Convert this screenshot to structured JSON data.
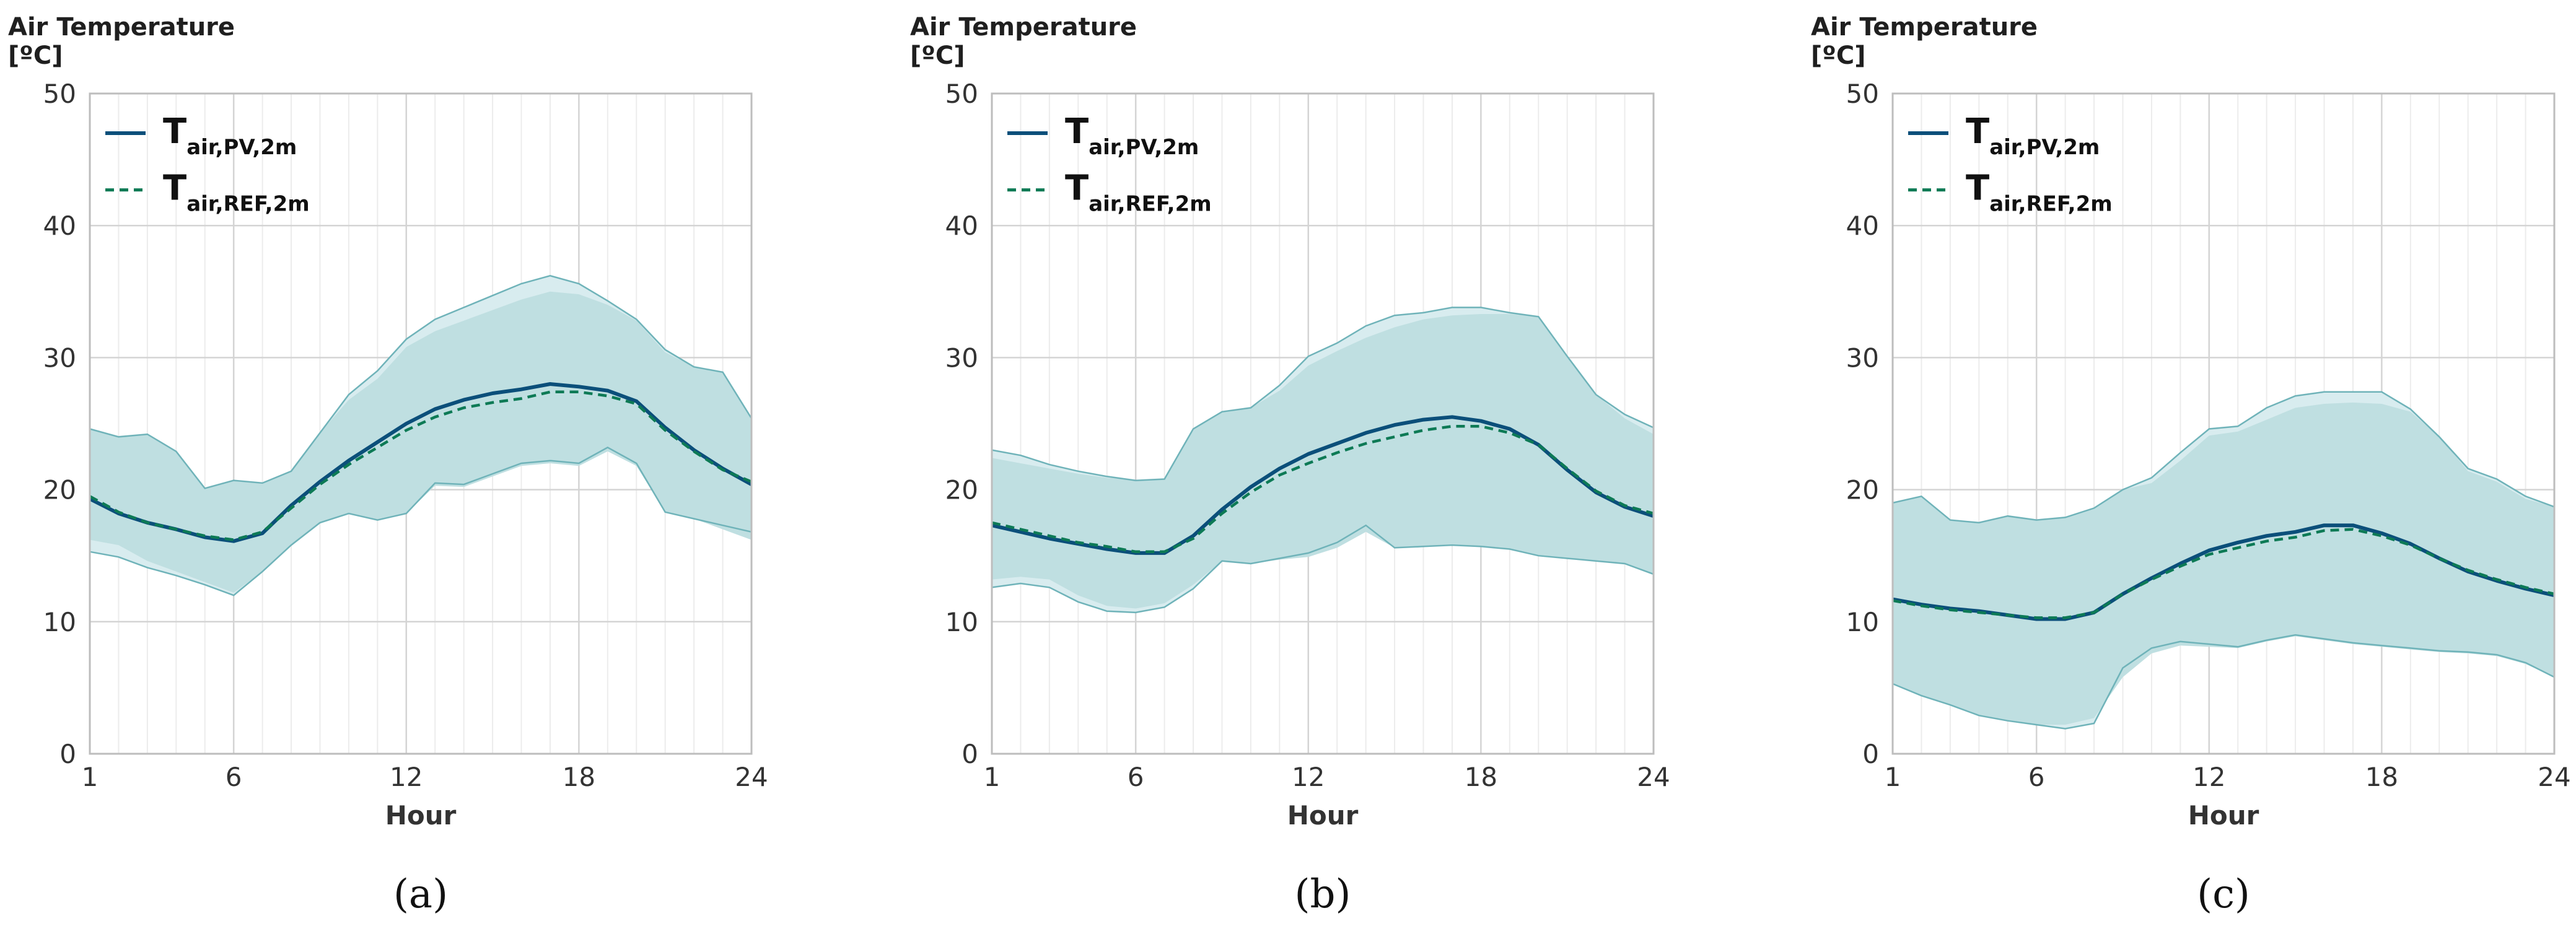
{
  "chart_data": [
    {
      "type": "line",
      "panel_label": "(a)",
      "title": "",
      "ylabel_line1": "Air Temperature",
      "ylabel_line2": "[ºC]",
      "xlabel": "Hour",
      "ylim": [
        0,
        50
      ],
      "xlim": [
        1,
        24
      ],
      "yticks": [
        0,
        10,
        20,
        30,
        40,
        50
      ],
      "xticks": [
        1,
        6,
        12,
        18,
        24
      ],
      "legend": [
        {
          "main": "T",
          "sub": "air,PV,2m",
          "style": "solid",
          "color": "#0b4f7a"
        },
        {
          "main": "T",
          "sub": "air,REF,2m",
          "style": "dashed",
          "color": "#0d7a55"
        }
      ],
      "x": [
        1,
        2,
        3,
        4,
        5,
        6,
        7,
        8,
        9,
        10,
        11,
        12,
        13,
        14,
        15,
        16,
        17,
        18,
        19,
        20,
        21,
        22,
        23,
        24
      ],
      "series": [
        {
          "name": "T air,PV,2m",
          "values": [
            19.3,
            18.2,
            17.5,
            17.0,
            16.4,
            16.1,
            16.7,
            18.8,
            20.6,
            22.2,
            23.6,
            25.0,
            26.1,
            26.8,
            27.3,
            27.6,
            28.0,
            27.8,
            27.5,
            26.7,
            24.7,
            23.0,
            21.6,
            20.4
          ]
        },
        {
          "name": "T air,REF,2m",
          "values": [
            19.5,
            18.3,
            17.5,
            17.0,
            16.5,
            16.2,
            16.8,
            18.6,
            20.4,
            21.9,
            23.2,
            24.5,
            25.5,
            26.2,
            26.6,
            26.9,
            27.4,
            27.4,
            27.1,
            26.5,
            24.5,
            22.9,
            21.5,
            20.6
          ]
        }
      ],
      "band_pv": {
        "upper": [
          24.6,
          24.0,
          24.2,
          22.9,
          20.1,
          20.7,
          20.5,
          21.4,
          24.3,
          27.2,
          29.0,
          31.4,
          32.9,
          33.8,
          34.7,
          35.6,
          36.2,
          35.6,
          34.3,
          32.9,
          30.6,
          29.3,
          28.9,
          25.4
        ],
        "lower": [
          15.3,
          14.9,
          14.1,
          13.5,
          12.8,
          12.0,
          13.8,
          15.8,
          17.5,
          18.2,
          17.7,
          18.2,
          20.5,
          20.4,
          21.2,
          22.0,
          22.2,
          22.0,
          23.2,
          22.0,
          18.3,
          17.8,
          17.3,
          16.8
        ]
      },
      "band_ref": {
        "upper": [
          24.6,
          24.0,
          24.2,
          22.9,
          20.1,
          20.7,
          20.5,
          21.4,
          24.3,
          26.8,
          28.4,
          30.8,
          32.0,
          32.8,
          33.6,
          34.4,
          35.0,
          34.8,
          34.0,
          32.8,
          30.4,
          29.3,
          28.9,
          25.4
        ],
        "lower": [
          16.2,
          15.8,
          14.6,
          13.8,
          13.0,
          12.2,
          13.8,
          15.8,
          17.5,
          18.2,
          17.7,
          18.2,
          20.3,
          20.2,
          21.0,
          21.8,
          22.0,
          21.8,
          22.9,
          21.8,
          18.3,
          17.8,
          17.0,
          16.2
        ]
      }
    },
    {
      "type": "line",
      "panel_label": "(b)",
      "title": "",
      "ylabel_line1": "Air Temperature",
      "ylabel_line2": "[ºC]",
      "xlabel": "Hour",
      "ylim": [
        0,
        50
      ],
      "xlim": [
        1,
        24
      ],
      "yticks": [
        0,
        10,
        20,
        30,
        40,
        50
      ],
      "xticks": [
        1,
        6,
        12,
        18,
        24
      ],
      "legend": [
        {
          "main": "T",
          "sub": "air,PV,2m",
          "style": "solid",
          "color": "#0b4f7a"
        },
        {
          "main": "T",
          "sub": "air,REF,2m",
          "style": "dashed",
          "color": "#0d7a55"
        }
      ],
      "x": [
        1,
        2,
        3,
        4,
        5,
        6,
        7,
        8,
        9,
        10,
        11,
        12,
        13,
        14,
        15,
        16,
        17,
        18,
        19,
        20,
        21,
        22,
        23,
        24
      ],
      "series": [
        {
          "name": "T air,PV,2m",
          "values": [
            17.3,
            16.8,
            16.3,
            15.9,
            15.5,
            15.2,
            15.2,
            16.5,
            18.5,
            20.2,
            21.6,
            22.7,
            23.5,
            24.3,
            24.9,
            25.3,
            25.5,
            25.2,
            24.6,
            23.4,
            21.5,
            19.8,
            18.7,
            18.0
          ]
        },
        {
          "name": "T air,REF,2m",
          "values": [
            17.5,
            17.0,
            16.5,
            16.0,
            15.7,
            15.3,
            15.3,
            16.3,
            18.2,
            19.8,
            21.1,
            22.0,
            22.8,
            23.5,
            24.0,
            24.5,
            24.8,
            24.8,
            24.3,
            23.4,
            21.6,
            19.9,
            18.8,
            18.2
          ]
        }
      ],
      "band_pv": {
        "upper": [
          23.0,
          22.6,
          21.9,
          21.4,
          21.0,
          20.7,
          20.8,
          24.6,
          25.9,
          26.2,
          27.9,
          30.1,
          31.1,
          32.4,
          33.2,
          33.4,
          33.8,
          33.8,
          33.4,
          33.1,
          30.1,
          27.2,
          25.7,
          24.7
        ],
        "lower": [
          12.6,
          12.9,
          12.6,
          11.5,
          10.8,
          10.7,
          11.1,
          12.5,
          14.6,
          14.4,
          14.8,
          15.2,
          16.0,
          17.3,
          15.6,
          15.7,
          15.8,
          15.7,
          15.5,
          15.0,
          14.8,
          14.6,
          14.4,
          13.6
        ]
      },
      "band_ref": {
        "upper": [
          22.4,
          22.0,
          21.6,
          21.2,
          20.9,
          20.7,
          20.8,
          24.6,
          25.9,
          26.2,
          27.5,
          29.4,
          30.5,
          31.5,
          32.3,
          32.9,
          33.2,
          33.3,
          33.3,
          33.1,
          30.1,
          27.2,
          25.4,
          24.2
        ],
        "lower": [
          13.2,
          13.4,
          13.2,
          12.0,
          11.2,
          11.0,
          11.4,
          12.8,
          14.6,
          14.4,
          14.7,
          14.9,
          15.6,
          16.8,
          15.6,
          15.7,
          15.8,
          15.7,
          15.5,
          15.0,
          14.8,
          14.6,
          14.4,
          13.6
        ]
      }
    },
    {
      "type": "line",
      "panel_label": "(c)",
      "title": "",
      "ylabel_line1": "Air Temperature",
      "ylabel_line2": "[ºC]",
      "xlabel": "Hour",
      "ylim": [
        0,
        50
      ],
      "xlim": [
        1,
        24
      ],
      "yticks": [
        0,
        10,
        20,
        30,
        40,
        50
      ],
      "xticks": [
        1,
        6,
        12,
        18,
        24
      ],
      "legend": [
        {
          "main": "T",
          "sub": "air,PV,2m",
          "style": "solid",
          "color": "#0b4f7a"
        },
        {
          "main": "T",
          "sub": "air,REF,2m",
          "style": "dashed",
          "color": "#0d7a55"
        }
      ],
      "x": [
        1,
        2,
        3,
        4,
        5,
        6,
        7,
        8,
        9,
        10,
        11,
        12,
        13,
        14,
        15,
        16,
        17,
        18,
        19,
        20,
        21,
        22,
        23,
        24
      ],
      "series": [
        {
          "name": "T air,PV,2m",
          "values": [
            11.7,
            11.3,
            11.0,
            10.8,
            10.5,
            10.2,
            10.2,
            10.7,
            12.1,
            13.3,
            14.4,
            15.4,
            16.0,
            16.5,
            16.8,
            17.3,
            17.3,
            16.7,
            15.9,
            14.8,
            13.8,
            13.1,
            12.5,
            12.0
          ]
        },
        {
          "name": "T air,REF,2m",
          "values": [
            11.6,
            11.2,
            10.9,
            10.7,
            10.5,
            10.3,
            10.3,
            10.7,
            12.1,
            13.2,
            14.2,
            15.1,
            15.6,
            16.1,
            16.4,
            16.9,
            17.0,
            16.5,
            15.8,
            14.8,
            13.9,
            13.2,
            12.6,
            12.1
          ]
        }
      ],
      "band_pv": {
        "upper": [
          19.0,
          19.5,
          17.7,
          17.5,
          18.0,
          17.7,
          17.9,
          18.6,
          20.0,
          20.9,
          22.8,
          24.6,
          24.8,
          26.2,
          27.1,
          27.4,
          27.4,
          27.4,
          26.1,
          24.0,
          21.6,
          20.8,
          19.5,
          18.7
        ],
        "lower": [
          5.3,
          4.4,
          3.7,
          2.9,
          2.5,
          2.2,
          1.9,
          2.3,
          6.5,
          8.0,
          8.5,
          8.3,
          8.1,
          8.6,
          9.0,
          8.7,
          8.4,
          8.2,
          8.0,
          7.8,
          7.7,
          7.5,
          6.9,
          5.8
        ]
      },
      "band_ref": {
        "upper": [
          19.0,
          19.5,
          17.7,
          17.5,
          18.0,
          17.7,
          17.9,
          18.6,
          20.0,
          20.5,
          22.2,
          24.1,
          24.4,
          25.3,
          26.2,
          26.5,
          26.6,
          26.5,
          25.9,
          24.0,
          21.4,
          20.6,
          19.3,
          18.7
        ],
        "lower": [
          5.3,
          4.4,
          3.7,
          2.9,
          2.5,
          2.2,
          2.2,
          2.7,
          5.8,
          7.6,
          8.2,
          8.1,
          8.0,
          8.5,
          8.9,
          8.6,
          8.3,
          8.1,
          7.9,
          7.7,
          7.6,
          7.4,
          6.8,
          5.8
        ]
      }
    }
  ],
  "colors": {
    "band_pv": "#d8ecef",
    "band_ref": "#bfdfe1",
    "band_edge": "#6fb3b9",
    "pv_line": "#0b4f7a",
    "ref_line": "#0d7a55",
    "grid_major": "#d4d4d4",
    "grid_minor": "#ececec",
    "axis": "#bdbdbd"
  }
}
